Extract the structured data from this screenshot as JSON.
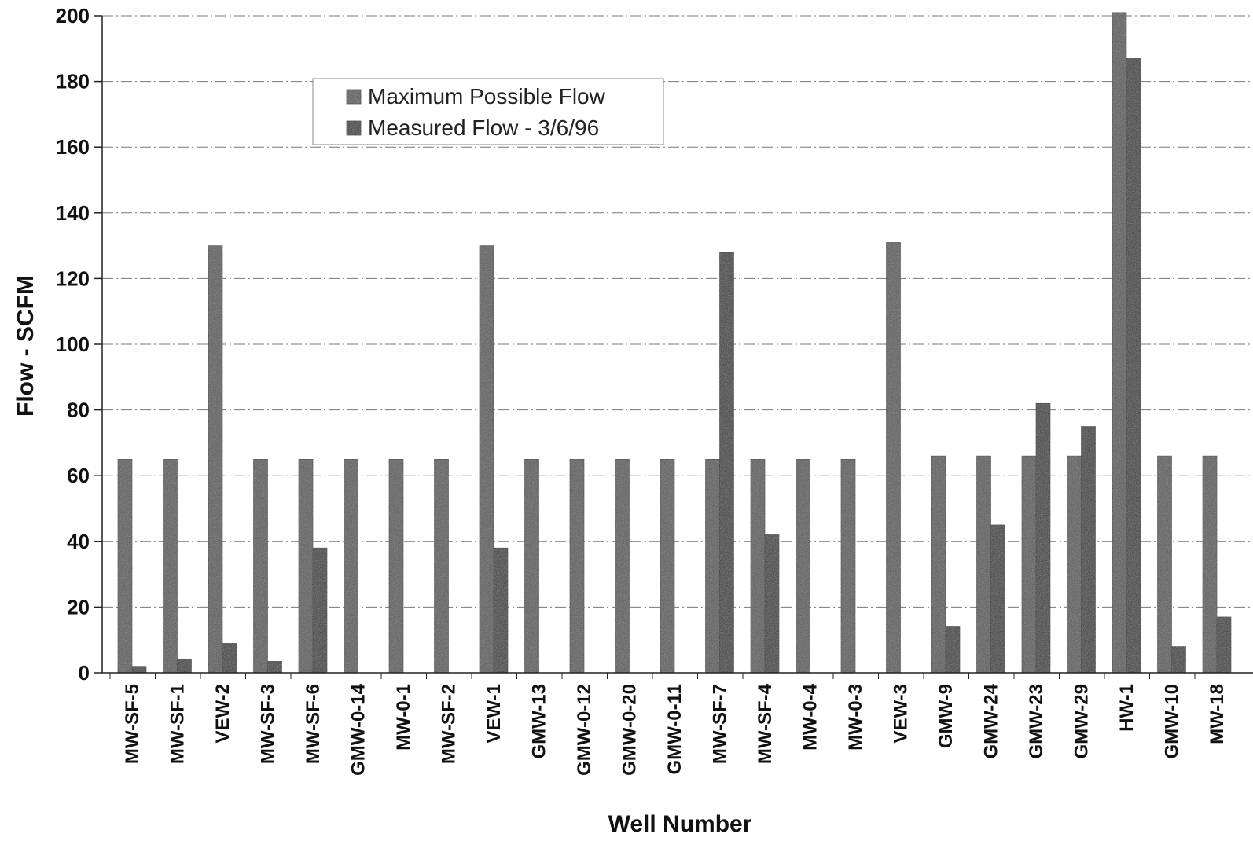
{
  "chart_data": {
    "type": "bar",
    "title": "",
    "xlabel": "Well Number",
    "ylabel": "Flow - SCFM",
    "ylim": [
      0,
      200
    ],
    "yticks": [
      0,
      20,
      40,
      60,
      80,
      100,
      120,
      140,
      160,
      180,
      200
    ],
    "grid": true,
    "legend_position": "top-center",
    "categories": [
      "MW-SF-5",
      "MW-SF-1",
      "VEW-2",
      "MW-SF-3",
      "MW-SF-6",
      "GMW-0-14",
      "MW-0-1",
      "MW-SF-2",
      "VEW-1",
      "GMW-13",
      "GMW-0-12",
      "GMW-0-20",
      "GMW-0-11",
      "MW-SF-7",
      "MW-SF-4",
      "MW-0-4",
      "MW-0-3",
      "VEW-3",
      "GMW-9",
      "GMW-24",
      "GMW-23",
      "GMW-29",
      "HW-1",
      "GMW-10",
      "MW-18"
    ],
    "series": [
      {
        "name": "Maximum Possible Flow",
        "color": "#5a5a5a",
        "values": [
          65,
          65,
          130,
          65,
          65,
          65,
          65,
          65,
          130,
          65,
          65,
          65,
          65,
          65,
          65,
          65,
          65,
          131,
          66,
          66,
          66,
          66,
          202,
          66,
          66
        ]
      },
      {
        "name": "Measured Flow - 3/6/96",
        "color": "#3a3a3a",
        "values": [
          2,
          4,
          9,
          3.5,
          38,
          0,
          0,
          0,
          38,
          0,
          0,
          0,
          0,
          128,
          42,
          0,
          0,
          0,
          14,
          45,
          82,
          75,
          187,
          8,
          17
        ]
      }
    ]
  }
}
